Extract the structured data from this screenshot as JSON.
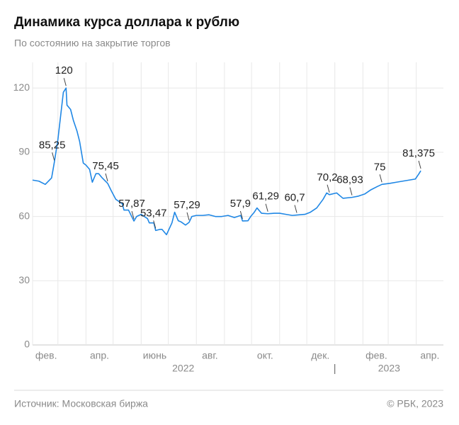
{
  "chart_data": {
    "type": "line",
    "title": "Динамика курса доллара к рублю",
    "subtitle": "По состоянию на закрытие торгов",
    "source": "Источник: Московская биржа",
    "copyright": "© РБК, 2023",
    "color": "#1f87e5",
    "grid": true,
    "ylim": [
      0,
      132
    ],
    "yticks": [
      0,
      30,
      60,
      90,
      120
    ],
    "xlim": [
      "2022-02-01",
      "2023-05-01"
    ],
    "xticks": [
      {
        "value": "2022-02",
        "label": "фев."
      },
      {
        "value": "2022-03",
        "label": null
      },
      {
        "value": "2022-04",
        "label": "апр."
      },
      {
        "value": "2022-05",
        "label": null
      },
      {
        "value": "2022-06",
        "label": "июнь"
      },
      {
        "value": "2022-07",
        "label": null
      },
      {
        "value": "2022-08",
        "label": "авг."
      },
      {
        "value": "2022-09",
        "label": null
      },
      {
        "value": "2022-10",
        "label": "окт."
      },
      {
        "value": "2022-11",
        "label": null
      },
      {
        "value": "2022-12",
        "label": "дек."
      },
      {
        "value": "2023-01",
        "label": null
      },
      {
        "value": "2023-02",
        "label": "фев."
      },
      {
        "value": "2023-03",
        "label": null
      },
      {
        "value": "2023-04",
        "label": "апр."
      }
    ],
    "years": [
      "2022",
      "2023"
    ],
    "x": [
      "2022-02-01",
      "2022-02-08",
      "2022-02-15",
      "2022-02-22",
      "2022-02-25",
      "2022-03-01",
      "2022-03-04",
      "2022-03-07",
      "2022-03-10",
      "2022-03-11",
      "2022-03-15",
      "2022-03-18",
      "2022-03-22",
      "2022-03-25",
      "2022-03-29",
      "2022-04-01",
      "2022-04-05",
      "2022-04-08",
      "2022-04-12",
      "2022-04-15",
      "2022-04-19",
      "2022-04-25",
      "2022-04-29",
      "2022-05-04",
      "2022-05-11",
      "2022-05-13",
      "2022-05-18",
      "2022-05-24",
      "2022-05-27",
      "2022-06-01",
      "2022-06-08",
      "2022-06-10",
      "2022-06-15",
      "2022-06-17",
      "2022-06-22",
      "2022-06-24",
      "2022-06-29",
      "2022-07-05",
      "2022-07-08",
      "2022-07-12",
      "2022-07-15",
      "2022-07-20",
      "2022-07-24",
      "2022-07-27",
      "2022-08-01",
      "2022-08-08",
      "2022-08-15",
      "2022-08-22",
      "2022-08-29",
      "2022-09-05",
      "2022-09-12",
      "2022-09-19",
      "2022-09-21",
      "2022-09-27",
      "2022-09-30",
      "2022-10-04",
      "2022-10-07",
      "2022-10-12",
      "2022-10-19",
      "2022-10-26",
      "2022-11-01",
      "2022-11-08",
      "2022-11-15",
      "2022-11-20",
      "2022-11-29",
      "2022-12-05",
      "2022-12-12",
      "2022-12-19",
      "2022-12-23",
      "2022-12-26",
      "2023-01-03",
      "2023-01-10",
      "2023-01-20",
      "2023-01-27",
      "2023-02-03",
      "2023-02-10",
      "2023-02-17",
      "2023-02-22",
      "2023-03-03",
      "2023-03-10",
      "2023-03-17",
      "2023-03-24",
      "2023-03-31",
      "2023-04-04",
      "2023-04-06"
    ],
    "values": [
      77,
      76.5,
      75,
      78,
      85.25,
      96,
      107,
      118,
      120,
      112,
      110,
      105,
      100,
      95,
      85,
      84,
      82,
      76,
      80,
      80,
      78,
      75.45,
      72,
      68,
      66,
      63,
      63,
      57.87,
      60,
      61,
      59,
      57,
      57,
      53.47,
      54,
      54,
      51.5,
      57,
      62,
      58,
      57.5,
      56,
      57.29,
      60,
      60.5,
      60.5,
      60.8,
      60,
      60,
      60.5,
      59.5,
      60.5,
      57.9,
      58,
      60,
      62,
      64,
      61.5,
      61.29,
      61.5,
      61.5,
      61,
      60.5,
      60.7,
      61,
      62,
      64,
      68,
      71,
      70.2,
      71,
      68.5,
      68.93,
      69.5,
      70.5,
      72.5,
      74,
      75,
      75.5,
      76,
      76.5,
      77,
      77.5,
      80,
      81.375
    ],
    "annotations": [
      {
        "x": "2022-02-25",
        "value": 85.25,
        "label": "85,25"
      },
      {
        "x": "2022-03-10",
        "value": 120,
        "label": "120"
      },
      {
        "x": "2022-04-25",
        "value": 75.45,
        "label": "75,45"
      },
      {
        "x": "2022-05-24",
        "value": 57.87,
        "label": "57,87"
      },
      {
        "x": "2022-06-17",
        "value": 53.47,
        "label": "53,47"
      },
      {
        "x": "2022-07-24",
        "value": 57.29,
        "label": "57,29"
      },
      {
        "x": "2022-09-21",
        "value": 57.9,
        "label": "57,9"
      },
      {
        "x": "2022-10-19",
        "value": 61.29,
        "label": "61,29"
      },
      {
        "x": "2022-11-20",
        "value": 60.7,
        "label": "60,7"
      },
      {
        "x": "2022-12-26",
        "value": 70.2,
        "label": "70,2"
      },
      {
        "x": "2023-01-20",
        "value": 68.93,
        "label": "68,93"
      },
      {
        "x": "2023-02-22",
        "value": 75,
        "label": "75"
      },
      {
        "x": "2023-04-06",
        "value": 81.375,
        "label": "81,375"
      }
    ]
  }
}
